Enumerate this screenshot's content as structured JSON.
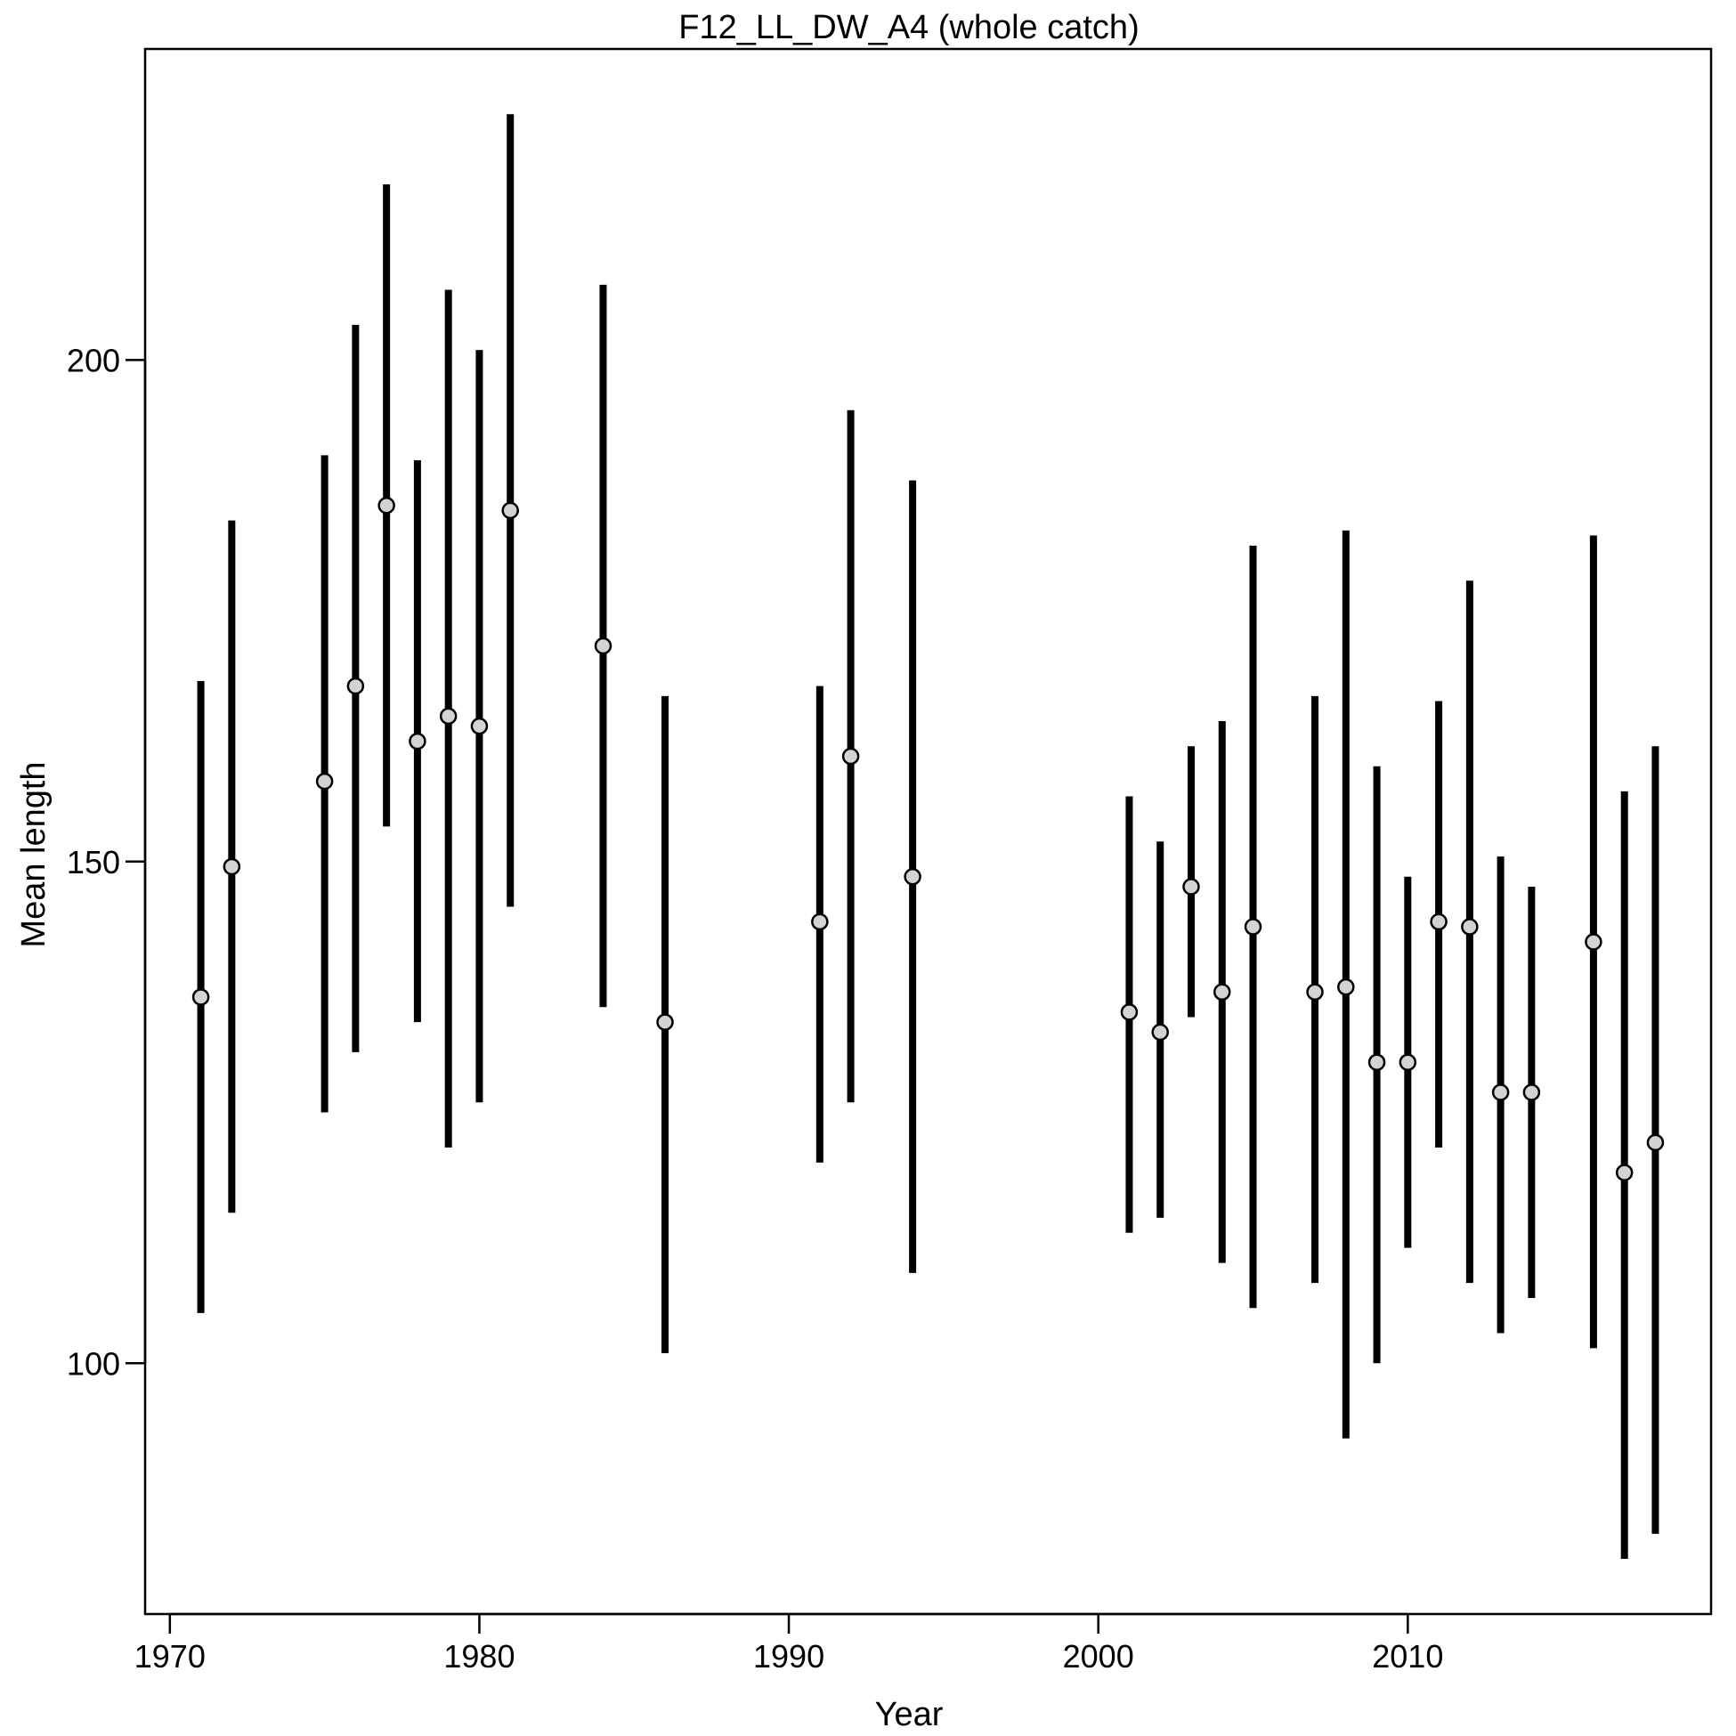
{
  "chart_data": {
    "type": "scatter",
    "title": "F12_LL_DW_A4 (whole catch)",
    "xlabel": "Year",
    "ylabel": "Mean length",
    "xlim": [
      1969.2,
      2019.8
    ],
    "ylim": [
      75,
      231
    ],
    "xticks": [
      1970,
      1980,
      1990,
      2000,
      2010
    ],
    "yticks": [
      100,
      150,
      200
    ],
    "grid": false,
    "legend": "none",
    "colors": {
      "bar": "#000000",
      "point_fill": "#d3d3d3",
      "point_stroke": "#000000",
      "frame": "#000000"
    },
    "series": [
      {
        "points": [
          {
            "x": 1971,
            "mean": 136.5,
            "lo": 105.0,
            "hi": 168.0
          },
          {
            "x": 1972,
            "mean": 149.5,
            "lo": 115.0,
            "hi": 184.0
          },
          {
            "x": 1975,
            "mean": 158.0,
            "lo": 125.0,
            "hi": 190.5
          },
          {
            "x": 1976,
            "mean": 167.5,
            "lo": 131.0,
            "hi": 203.5
          },
          {
            "x": 1977,
            "mean": 185.5,
            "lo": 153.5,
            "hi": 217.5
          },
          {
            "x": 1978,
            "mean": 162.0,
            "lo": 134.0,
            "hi": 190.0
          },
          {
            "x": 1979,
            "mean": 164.5,
            "lo": 121.5,
            "hi": 207.0
          },
          {
            "x": 1980,
            "mean": 163.5,
            "lo": 126.0,
            "hi": 201.0
          },
          {
            "x": 1981,
            "mean": 185.0,
            "lo": 145.5,
            "hi": 224.5
          },
          {
            "x": 1984,
            "mean": 171.5,
            "lo": 135.5,
            "hi": 207.5
          },
          {
            "x": 1986,
            "mean": 134.0,
            "lo": 101.0,
            "hi": 166.5
          },
          {
            "x": 1991,
            "mean": 144.0,
            "lo": 120.0,
            "hi": 167.5
          },
          {
            "x": 1992,
            "mean": 160.5,
            "lo": 126.0,
            "hi": 195.0
          },
          {
            "x": 1994,
            "mean": 148.5,
            "lo": 109.0,
            "hi": 188.0
          },
          {
            "x": 2001,
            "mean": 135.0,
            "lo": 113.0,
            "hi": 156.5
          },
          {
            "x": 2002,
            "mean": 133.0,
            "lo": 114.5,
            "hi": 152.0
          },
          {
            "x": 2003,
            "mean": 147.5,
            "lo": 134.5,
            "hi": 161.5
          },
          {
            "x": 2004,
            "mean": 137.0,
            "lo": 110.0,
            "hi": 164.0
          },
          {
            "x": 2005,
            "mean": 143.5,
            "lo": 105.5,
            "hi": 181.5
          },
          {
            "x": 2007,
            "mean": 137.0,
            "lo": 108.0,
            "hi": 166.5
          },
          {
            "x": 2008,
            "mean": 137.5,
            "lo": 92.5,
            "hi": 183.0
          },
          {
            "x": 2009,
            "mean": 130.0,
            "lo": 100.0,
            "hi": 159.5
          },
          {
            "x": 2010,
            "mean": 130.0,
            "lo": 111.5,
            "hi": 148.5
          },
          {
            "x": 2011,
            "mean": 144.0,
            "lo": 121.5,
            "hi": 166.0
          },
          {
            "x": 2012,
            "mean": 143.5,
            "lo": 108.0,
            "hi": 178.0
          },
          {
            "x": 2013,
            "mean": 127.0,
            "lo": 103.0,
            "hi": 150.5
          },
          {
            "x": 2014,
            "mean": 127.0,
            "lo": 106.5,
            "hi": 147.5
          },
          {
            "x": 2016,
            "mean": 142.0,
            "lo": 101.5,
            "hi": 182.5
          },
          {
            "x": 2017,
            "mean": 119.0,
            "lo": 80.5,
            "hi": 157.0
          },
          {
            "x": 2018,
            "mean": 122.0,
            "lo": 83.0,
            "hi": 161.5
          }
        ]
      }
    ]
  }
}
